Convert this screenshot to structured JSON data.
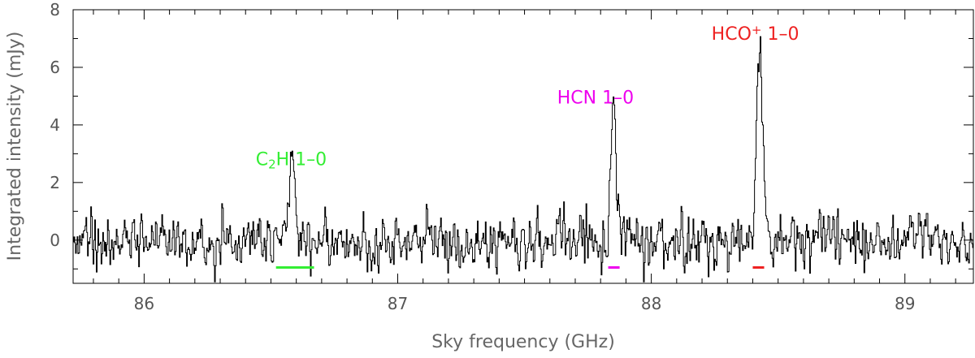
{
  "chart_data": {
    "type": "line",
    "xlabel": "Sky frequency (GHz)",
    "ylabel": "Integrated intensity (mJy)",
    "xlim": [
      85.72,
      89.27
    ],
    "ylim": [
      -1.5,
      8
    ],
    "x_ticks": [
      86,
      87,
      88,
      89
    ],
    "y_ticks": [
      0,
      2,
      4,
      6,
      8
    ],
    "x_tick_labels": [
      "86",
      "87",
      "88",
      "89"
    ],
    "y_tick_labels": [
      "0",
      "2",
      "4",
      "6",
      "8"
    ],
    "grid": false,
    "legend": "none",
    "series": [
      {
        "style": "step",
        "color": "#000000",
        "channel_width_ghz": 0.00315,
        "noise_rms_mjy": 0.45,
        "x_start": 85.72,
        "x_end": 89.27,
        "peaks": [
          {
            "center": 86.575,
            "amplitude": 2.0,
            "width": 0.01
          },
          {
            "center": 86.59,
            "amplitude": 1.6,
            "width": 0.009
          },
          {
            "center": 87.85,
            "amplitude": 4.4,
            "width": 0.011
          },
          {
            "center": 88.425,
            "amplitude": 6.8,
            "width": 0.012
          }
        ]
      }
    ],
    "annotations": [
      {
        "id": "c2h",
        "label_parts": [
          {
            "text": "C"
          },
          {
            "text": "2",
            "sub": true
          },
          {
            "text": "H 1–0"
          }
        ],
        "color": "#33ee33",
        "label_x": 86.58,
        "label_y": 2.6,
        "range": [
          86.52,
          86.67
        ],
        "range_y": -0.95
      },
      {
        "id": "hcn",
        "label_parts": [
          {
            "text": "HCN 1–0"
          }
        ],
        "color": "#ee00ee",
        "label_x": 87.78,
        "label_y": 4.75,
        "range": [
          87.83,
          87.875
        ],
        "range_y": -0.95
      },
      {
        "id": "hcoplus",
        "label_parts": [
          {
            "text": "HCO"
          },
          {
            "text": "+",
            "sup": true
          },
          {
            "text": " 1–0"
          }
        ],
        "color": "#ee2222",
        "label_x": 88.41,
        "label_y": 6.95,
        "range": [
          88.4,
          88.445
        ],
        "range_y": -0.95
      }
    ]
  }
}
